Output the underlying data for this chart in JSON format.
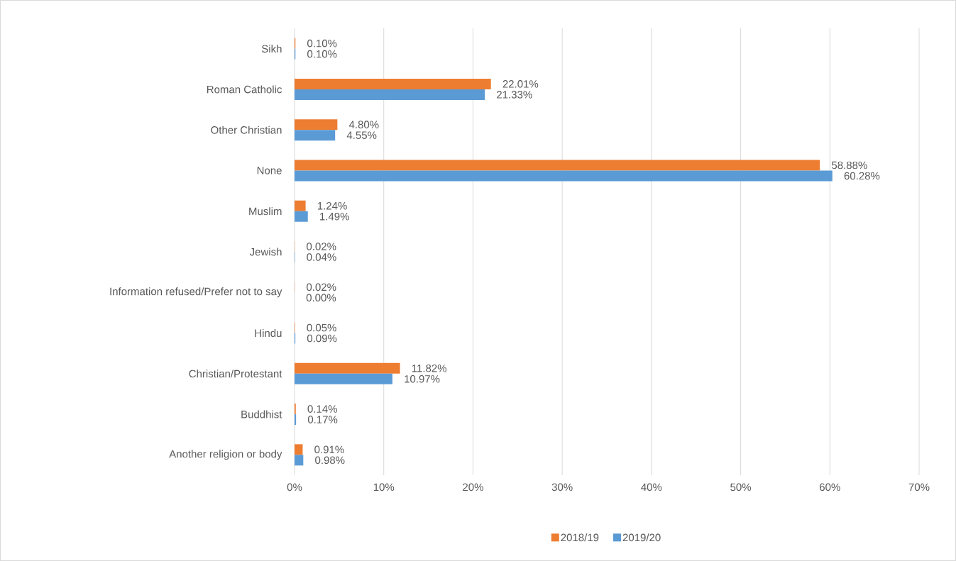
{
  "chart_data": {
    "type": "bar",
    "orientation": "horizontal",
    "categories": [
      "Sikh",
      "Roman Catholic",
      "Other Christian",
      "None",
      "Muslim",
      "Jewish",
      "Information refused/Prefer not to say",
      "Hindu",
      "Christian/Protestant",
      "Buddhist",
      "Another religion or body"
    ],
    "series": [
      {
        "name": "2018/19",
        "color": "#ed7d31",
        "values": [
          0.1,
          22.01,
          4.8,
          58.88,
          1.24,
          0.02,
          0.02,
          0.05,
          11.82,
          0.14,
          0.91
        ],
        "value_labels": [
          "0.10%",
          "22.01%",
          "4.80%",
          "58.88%",
          "1.24%",
          "0.02%",
          "0.02%",
          "0.05%",
          "11.82%",
          "0.14%",
          "0.91%"
        ]
      },
      {
        "name": "2019/20",
        "color": "#5b9bd5",
        "values": [
          0.1,
          21.33,
          4.55,
          60.28,
          1.49,
          0.04,
          0.0,
          0.09,
          10.97,
          0.17,
          0.98
        ],
        "value_labels": [
          "0.10%",
          "21.33%",
          "4.55%",
          "60.28%",
          "1.49%",
          "0.04%",
          "0.00%",
          "0.09%",
          "10.97%",
          "0.17%",
          "0.98%"
        ]
      }
    ],
    "xlim": [
      0,
      70
    ],
    "xticks": [
      {
        "value": 0,
        "label": "0%"
      },
      {
        "value": 10,
        "label": "10%"
      },
      {
        "value": 20,
        "label": "20%"
      },
      {
        "value": 30,
        "label": "30%"
      },
      {
        "value": 40,
        "label": "40%"
      },
      {
        "value": 50,
        "label": "50%"
      },
      {
        "value": 60,
        "label": "60%"
      },
      {
        "value": 70,
        "label": "70%"
      }
    ],
    "grid": "x",
    "legend": "bottom"
  }
}
